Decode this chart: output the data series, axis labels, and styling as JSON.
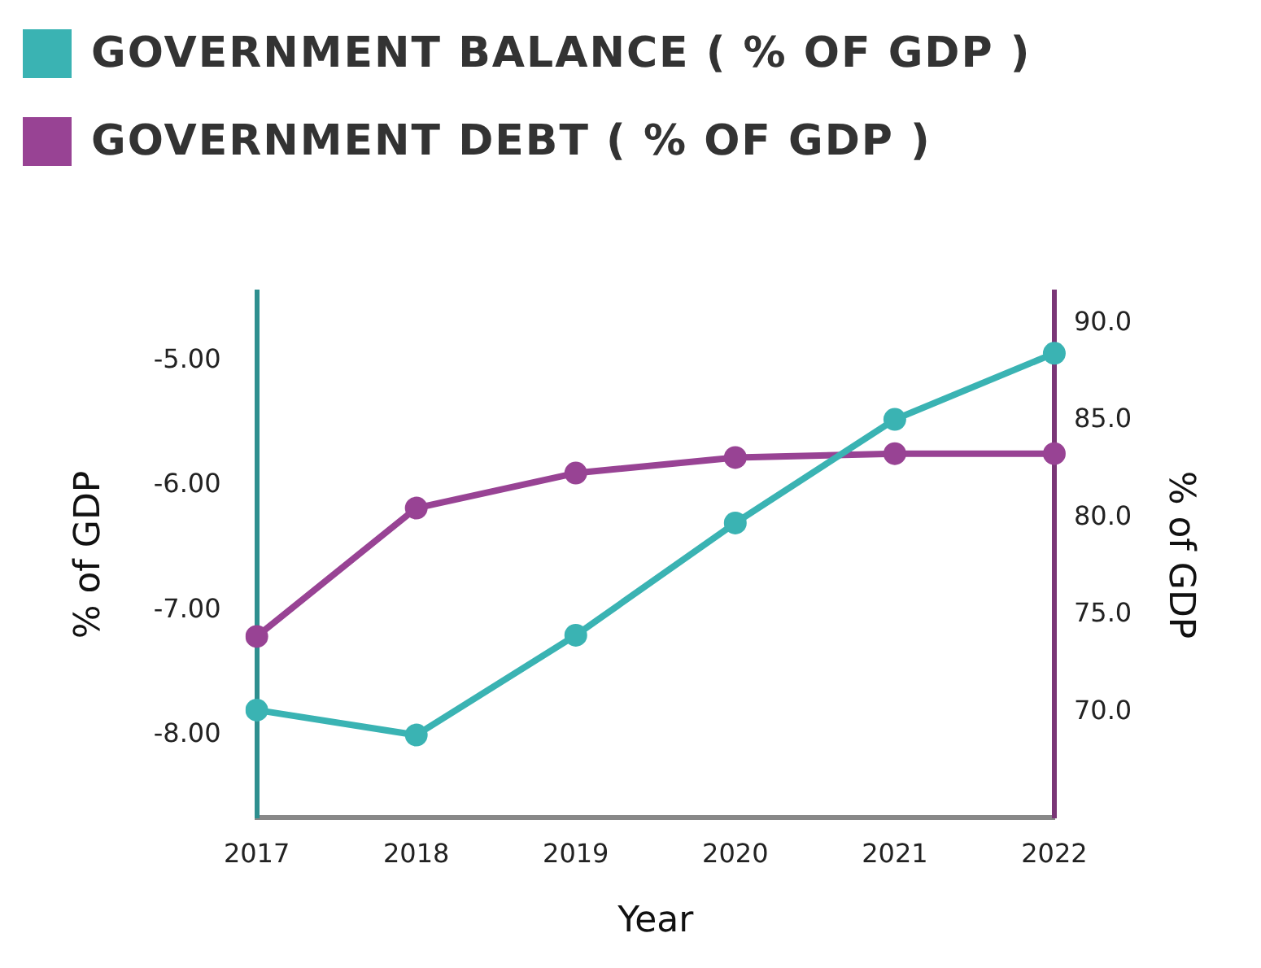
{
  "chart_data": {
    "type": "line",
    "xlabel": "Year",
    "ylabel": "% of GDP",
    "y2label": "% of GDP",
    "legend": "top left",
    "marker": "circle",
    "line_style": "solid",
    "categories": [
      "2017",
      "2018",
      "2019",
      "2020",
      "2021",
      "2022"
    ],
    "series": [
      {
        "name": "GOVERNMENT BALANCE ( % OF GDP )",
        "color": "#3ab3b3",
        "values": [
          -7.8,
          -8.0,
          -7.2,
          -6.3,
          -5.47,
          -4.94
        ]
      },
      {
        "name": "GOVERNMENT DEBT ( % OF GDP )",
        "color": "#984394",
        "axis": "y2",
        "values": [
          73.9,
          80.5,
          82.3,
          83.1,
          83.3,
          83.3
        ]
      }
    ],
    "ylim": [
      -8.66,
      -4.45
    ],
    "yticks": [
      {
        "value": -8,
        "label": "-8.00"
      },
      {
        "value": -7,
        "label": "-7.00"
      },
      {
        "value": -6,
        "label": "-6.00"
      },
      {
        "value": -5,
        "label": "-5.00"
      }
    ],
    "y2lim": [
      64.6,
      91.6
    ],
    "y2ticks": [
      {
        "value": 70,
        "label": "70.0"
      },
      {
        "value": 75,
        "label": "75.0"
      },
      {
        "value": 80,
        "label": "80.0"
      },
      {
        "value": 85,
        "label": "85.0"
      },
      {
        "value": 90,
        "label": "90.0"
      }
    ]
  }
}
